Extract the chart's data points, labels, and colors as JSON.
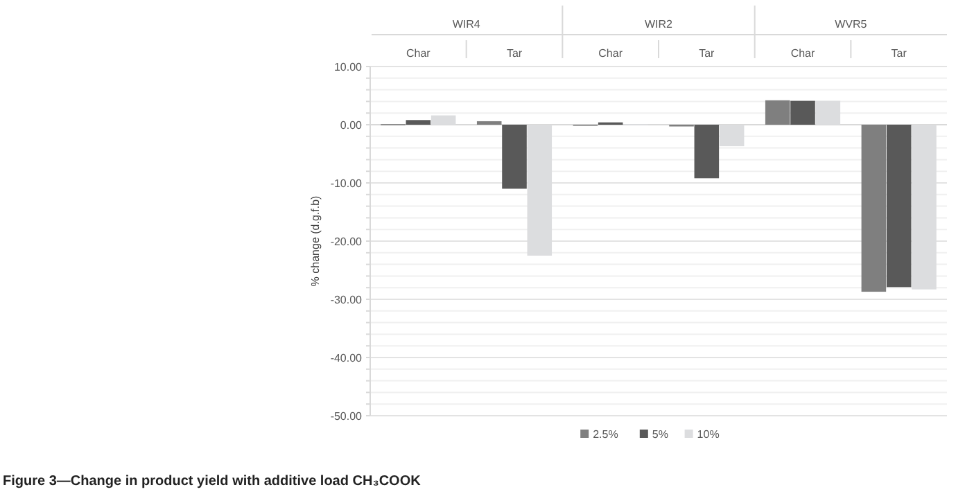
{
  "chart_data": {
    "type": "bar",
    "title": "Figure 3—Change in product yield with additive load CH₃COOK",
    "ylabel": "% change (d.g.f.b)",
    "categories": [
      "Char",
      "Tar",
      "Char",
      "Tar",
      "Char",
      "Tar"
    ],
    "annotations": [
      "WIR4",
      "WIR2",
      "WVR5"
    ],
    "series": [
      {
        "name": "2.5%",
        "color": "#7f7f7f",
        "values": [
          0.1,
          0.6,
          0.0,
          -0.3,
          4.2,
          -28.7
        ]
      },
      {
        "name": "5%",
        "color": "#595959",
        "values": [
          0.8,
          -11.0,
          0.4,
          -9.2,
          4.1,
          -27.9
        ]
      },
      {
        "name": "10%",
        "color": "#dcdddf",
        "values": [
          1.6,
          -22.5,
          0.1,
          -3.7,
          4.1,
          -28.3
        ]
      }
    ],
    "ylim": [
      -50,
      10
    ],
    "yticks": [
      {
        "value": 10,
        "label": "10.00"
      },
      {
        "value": 8,
        "label": null
      },
      {
        "value": 6,
        "label": null
      },
      {
        "value": 4,
        "label": null
      },
      {
        "value": 2,
        "label": null
      },
      {
        "value": 0,
        "label": "0.00"
      },
      {
        "value": -2,
        "label": null
      },
      {
        "value": -4,
        "label": null
      },
      {
        "value": -6,
        "label": null
      },
      {
        "value": -8,
        "label": null
      },
      {
        "value": -10,
        "label": "-10.00"
      },
      {
        "value": -12,
        "label": null
      },
      {
        "value": -14,
        "label": null
      },
      {
        "value": -16,
        "label": null
      },
      {
        "value": -18,
        "label": null
      },
      {
        "value": -20,
        "label": "-20.00"
      },
      {
        "value": -22,
        "label": null
      },
      {
        "value": -24,
        "label": null
      },
      {
        "value": -26,
        "label": null
      },
      {
        "value": -28,
        "label": null
      },
      {
        "value": -30,
        "label": "-30.00"
      },
      {
        "value": -32,
        "label": null
      },
      {
        "value": -34,
        "label": null
      },
      {
        "value": -36,
        "label": null
      },
      {
        "value": -38,
        "label": null
      },
      {
        "value": -40,
        "label": "-40.00"
      },
      {
        "value": -42,
        "label": null
      },
      {
        "value": -44,
        "label": null
      },
      {
        "value": -46,
        "label": null
      },
      {
        "value": -48,
        "label": null
      },
      {
        "value": -50,
        "label": "-50.00"
      }
    ],
    "grid": "y",
    "legend": "bottom"
  }
}
